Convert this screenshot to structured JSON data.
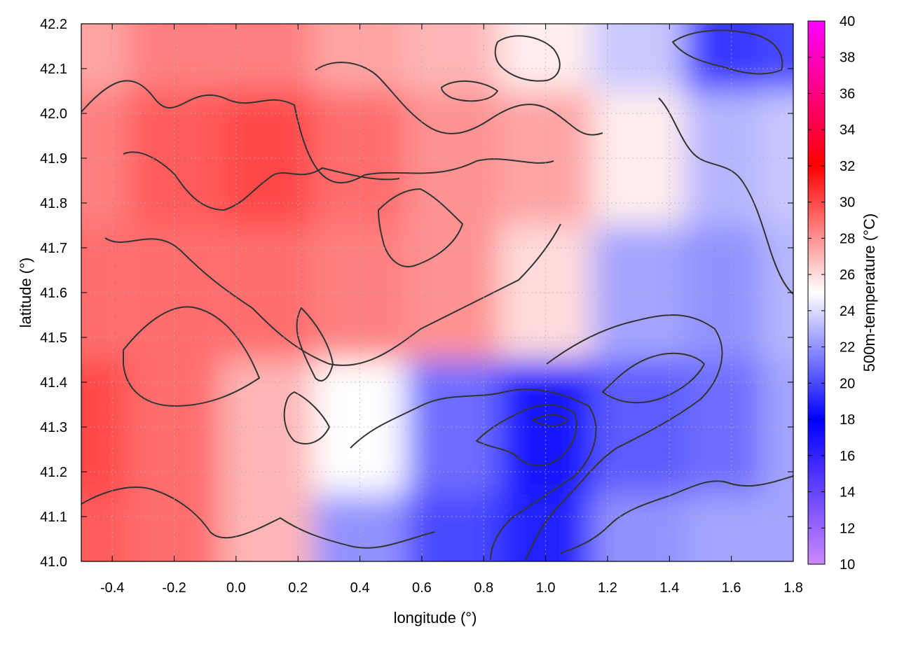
{
  "chart_data": {
    "type": "heatmap",
    "title": "",
    "xlabel": "longitude (°)",
    "ylabel": "latitude (°)",
    "colorbar_label": "500m-temperature (°C)",
    "xlim": [
      -0.5,
      1.8
    ],
    "ylim": [
      41.0,
      42.2
    ],
    "x_ticks": [
      "-0.4",
      "-0.2",
      "0.0",
      "0.2",
      "0.4",
      "0.6",
      "0.8",
      "1.0",
      "1.2",
      "1.4",
      "1.6",
      "1.8"
    ],
    "x_tick_values": [
      -0.4,
      -0.2,
      0.0,
      0.2,
      0.4,
      0.6,
      0.8,
      1.0,
      1.2,
      1.4,
      1.6,
      1.8
    ],
    "y_ticks": [
      "41.0",
      "41.1",
      "41.2",
      "41.3",
      "41.4",
      "41.5",
      "41.6",
      "41.7",
      "41.8",
      "41.9",
      "42.0",
      "42.1",
      "42.2"
    ],
    "y_tick_values": [
      41.0,
      41.1,
      41.2,
      41.3,
      41.4,
      41.5,
      41.6,
      41.7,
      41.8,
      41.9,
      42.0,
      42.1,
      42.2
    ],
    "color_scale": {
      "min": 10,
      "max": 40,
      "tick_labels": [
        "10",
        "12",
        "14",
        "16",
        "18",
        "20",
        "22",
        "24",
        "26",
        "28",
        "30",
        "32",
        "34",
        "36",
        "38",
        "40"
      ],
      "tick_values": [
        10,
        12,
        14,
        16,
        18,
        20,
        22,
        24,
        26,
        28,
        30,
        32,
        34,
        36,
        38,
        40
      ],
      "stops": [
        {
          "value": 10,
          "color": "#cc88ff"
        },
        {
          "value": 18,
          "color": "#0000ff"
        },
        {
          "value": 25,
          "color": "#ffffff"
        },
        {
          "value": 32,
          "color": "#ff0000"
        },
        {
          "value": 40,
          "color": "#ff00ff"
        }
      ]
    },
    "grid": true,
    "grid_sample_lon": [
      -0.5,
      -0.2,
      0.1,
      0.4,
      0.7,
      1.0,
      1.3,
      1.6,
      1.8
    ],
    "grid_sample_lat": [
      42.2,
      41.9,
      41.6,
      41.3,
      41.0
    ],
    "values": [
      [
        27.5,
        28.5,
        28.5,
        27.5,
        27,
        25.5,
        23.5,
        19.5,
        20
      ],
      [
        28.5,
        29.5,
        30,
        29,
        28,
        27.5,
        25.5,
        23,
        23.5
      ],
      [
        29,
        29,
        29,
        28.5,
        28,
        26,
        22.5,
        22,
        23
      ],
      [
        30,
        29,
        27,
        25,
        21,
        18.5,
        20.5,
        21,
        22.5
      ],
      [
        29.5,
        29,
        27,
        22,
        20,
        19,
        22,
        22.5,
        22.5
      ]
    ]
  }
}
